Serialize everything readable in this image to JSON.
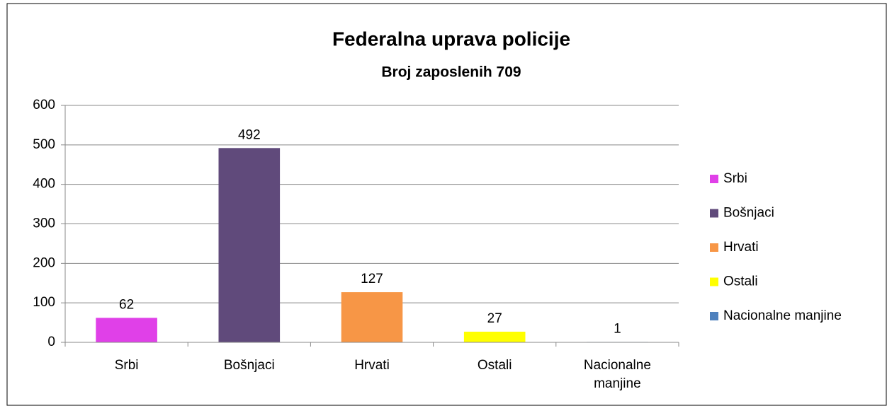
{
  "chart_data": {
    "type": "bar",
    "title": "Federalna uprava policije",
    "subtitle": "Broj zaposlenih 709",
    "categories": [
      "Srbi",
      "Bošnjaci",
      "Hrvati",
      "Ostali",
      "Nacionalne manjine"
    ],
    "values": [
      62,
      492,
      127,
      27,
      1
    ],
    "colors": [
      "#e040e8",
      "#604a7b",
      "#f79646",
      "#ffff00",
      "#4f81bd"
    ],
    "ylim": [
      0,
      600
    ],
    "yticks": [
      0,
      100,
      200,
      300,
      400,
      500,
      600
    ],
    "grid": true,
    "legend": "right"
  }
}
